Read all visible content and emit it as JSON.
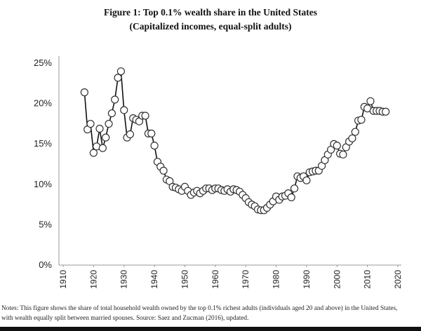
{
  "chart_data": {
    "type": "line",
    "title": "Figure 1: Top 0.1% wealth share in the United States",
    "subtitle": "(Capitalized incomes, equal-split adults)",
    "xlabel": "",
    "ylabel": "",
    "xlim": [
      1910,
      2020
    ],
    "ylim": [
      0,
      25
    ],
    "x_ticks": [
      "1910",
      "1920",
      "1930",
      "1940",
      "1950",
      "1960",
      "1970",
      "1980",
      "1990",
      "2000",
      "2010",
      "2020"
    ],
    "y_ticks": [
      "0%",
      "5%",
      "10%",
      "15%",
      "20%",
      "25%"
    ],
    "grid": false,
    "marker": "hollow-circle",
    "line_color": "#111111",
    "x": [
      1917,
      1918,
      1919,
      1920,
      1921,
      1922,
      1923,
      1924,
      1925,
      1926,
      1927,
      1928,
      1929,
      1930,
      1931,
      1932,
      1933,
      1934,
      1935,
      1936,
      1937,
      1938,
      1939,
      1940,
      1941,
      1942,
      1943,
      1944,
      1945,
      1946,
      1947,
      1948,
      1949,
      1950,
      1951,
      1952,
      1953,
      1954,
      1955,
      1956,
      1957,
      1958,
      1959,
      1960,
      1961,
      1962,
      1963,
      1964,
      1965,
      1966,
      1967,
      1968,
      1969,
      1970,
      1971,
      1972,
      1973,
      1974,
      1975,
      1976,
      1977,
      1978,
      1979,
      1980,
      1981,
      1982,
      1983,
      1984,
      1985,
      1986,
      1987,
      1988,
      1989,
      1990,
      1991,
      1992,
      1993,
      1994,
      1995,
      1996,
      1997,
      1998,
      1999,
      2000,
      2001,
      2002,
      2003,
      2004,
      2005,
      2006,
      2007,
      2008,
      2009,
      2010,
      2011,
      2012,
      2013,
      2014,
      2015,
      2016
    ],
    "y": [
      21.3,
      16.7,
      17.4,
      13.8,
      14.6,
      16.8,
      14.4,
      15.7,
      17.4,
      18.7,
      20.4,
      23.1,
      23.9,
      19.1,
      15.7,
      16.1,
      18.1,
      17.9,
      17.7,
      18.4,
      18.4,
      16.2,
      16.2,
      14.7,
      12.7,
      12.1,
      11.6,
      10.5,
      10.3,
      9.6,
      9.5,
      9.3,
      9.1,
      9.6,
      9.1,
      8.6,
      8.9,
      9.1,
      8.8,
      9.1,
      9.4,
      9.4,
      9.2,
      9.4,
      9.4,
      9.2,
      9.1,
      9.3,
      9.0,
      9.3,
      9.2,
      9.0,
      8.6,
      8.2,
      7.7,
      7.4,
      7.2,
      6.8,
      6.7,
      6.7,
      7.0,
      7.4,
      7.8,
      8.4,
      8.0,
      8.4,
      8.5,
      8.8,
      8.3,
      9.4,
      10.9,
      10.7,
      10.9,
      10.4,
      11.4,
      11.5,
      11.6,
      11.6,
      12.2,
      12.9,
      13.6,
      14.2,
      14.9,
      14.7,
      13.7,
      13.6,
      14.5,
      15.2,
      15.6,
      16.4,
      17.8,
      17.9,
      19.5,
      19.3,
      20.2,
      19.0,
      19.0,
      19.0,
      18.9,
      18.9
    ]
  },
  "notes": {
    "line1": "Notes: This figure shows the share of total household wealth owned by the top 0.1% richest adults (individuals aged 20 and above) in the United States,",
    "line2": "with wealth equally split between married spouses. Source: Saez and Zucman (2016), updated."
  }
}
